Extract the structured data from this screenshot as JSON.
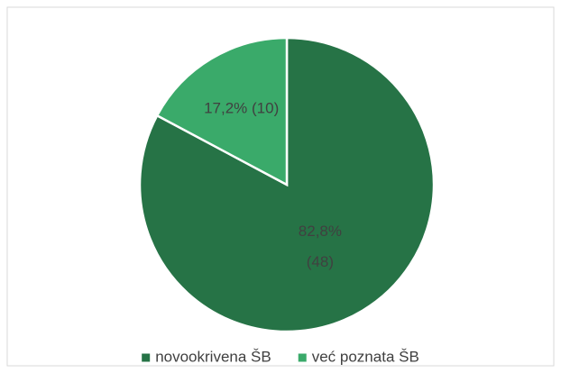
{
  "chart_data": {
    "type": "pie",
    "categories": [
      "novookrivena ŠB",
      "već poznata ŠB"
    ],
    "values": [
      82.8,
      17.2
    ],
    "value_labels": [
      "82,8% (48)",
      "17,2% (10)"
    ],
    "colors": [
      "#267346",
      "#3aaa6a"
    ],
    "legend": "bottom"
  }
}
